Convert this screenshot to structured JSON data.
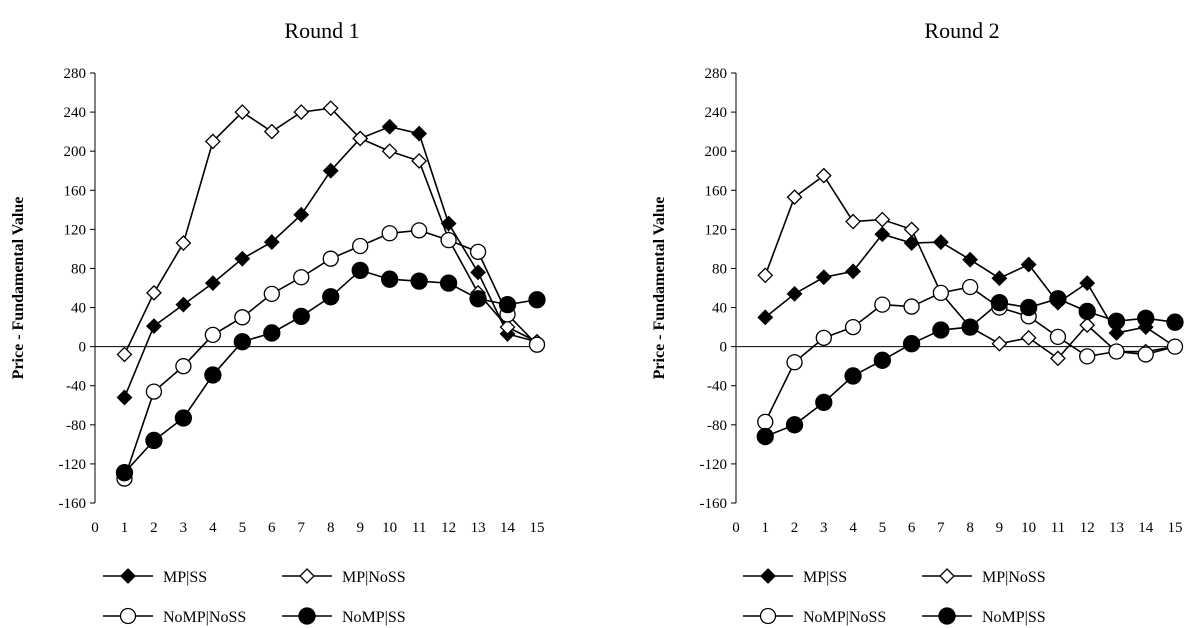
{
  "chart_data": [
    {
      "type": "line",
      "title": "Round 1",
      "xlabel": "",
      "ylabel": "Price - Fundamental Value",
      "xlim": [
        0,
        15
      ],
      "ylim": [
        -160,
        280
      ],
      "x_ticks": [
        "0",
        "1",
        "2",
        "3",
        "4",
        "5",
        "6",
        "7",
        "8",
        "9",
        "10",
        "11",
        "12",
        "13",
        "14",
        "15"
      ],
      "y_ticks": [
        "280",
        "240",
        "200",
        "160",
        "120",
        "80",
        "40",
        "0",
        "-40",
        "-80",
        "-120",
        "-160"
      ],
      "grid": false,
      "legend": "bottom",
      "x": [
        1,
        2,
        3,
        4,
        5,
        6,
        7,
        8,
        9,
        10,
        11,
        12,
        13,
        14,
        15
      ],
      "series": [
        {
          "name": "MP|SS",
          "marker": "filled-diamond",
          "values": [
            -52,
            21,
            43,
            65,
            90,
            107,
            135,
            180,
            213,
            225,
            218,
            126,
            76,
            13,
            5
          ]
        },
        {
          "name": "MP|NoSS",
          "marker": "open-diamond",
          "values": [
            -8,
            55,
            106,
            210,
            240,
            220,
            240,
            244,
            213,
            200,
            190,
            110,
            55,
            20,
            5
          ]
        },
        {
          "name": "NoMP|NoSS",
          "marker": "open-circle",
          "values": [
            -135,
            -46,
            -20,
            12,
            30,
            54,
            71,
            90,
            103,
            116,
            119,
            109,
            97,
            33,
            2
          ]
        },
        {
          "name": "NoMP|SS",
          "marker": "filled-circle",
          "values": [
            -129,
            -96,
            -73,
            -29,
            5,
            14,
            31,
            51,
            78,
            69,
            67,
            65,
            49,
            43,
            48
          ]
        }
      ]
    },
    {
      "type": "line",
      "title": "Round 2",
      "xlabel": "",
      "ylabel": "Price - Fundamental Value",
      "xlim": [
        0,
        15
      ],
      "ylim": [
        -160,
        280
      ],
      "x_ticks": [
        "0",
        "1",
        "2",
        "3",
        "4",
        "5",
        "6",
        "7",
        "8",
        "9",
        "10",
        "11",
        "12",
        "13",
        "14",
        "15"
      ],
      "y_ticks": [
        "280",
        "240",
        "200",
        "160",
        "120",
        "80",
        "40",
        "0",
        "-40",
        "-80",
        "-120",
        "-160"
      ],
      "grid": false,
      "legend": "bottom",
      "x": [
        1,
        2,
        3,
        4,
        5,
        6,
        7,
        8,
        9,
        10,
        11,
        12,
        13,
        14,
        15
      ],
      "series": [
        {
          "name": "MP|SS",
          "marker": "filled-diamond",
          "values": [
            30,
            54,
            71,
            77,
            115,
            106,
            107,
            89,
            70,
            84,
            45,
            65,
            14,
            20,
            0
          ]
        },
        {
          "name": "MP|NoSS",
          "marker": "open-diamond",
          "values": [
            73,
            153,
            175,
            128,
            130,
            120,
            55,
            20,
            3,
            9,
            -12,
            22,
            -5,
            -5,
            0
          ]
        },
        {
          "name": "NoMP|NoSS",
          "marker": "open-circle",
          "values": [
            -77,
            -16,
            9,
            20,
            43,
            41,
            55,
            61,
            40,
            31,
            10,
            -10,
            -5,
            -8,
            0
          ]
        },
        {
          "name": "NoMP|SS",
          "marker": "filled-circle",
          "values": [
            -92,
            -80,
            -57,
            -30,
            -14,
            3,
            17,
            20,
            45,
            40,
            49,
            36,
            26,
            29,
            25
          ]
        }
      ]
    }
  ]
}
